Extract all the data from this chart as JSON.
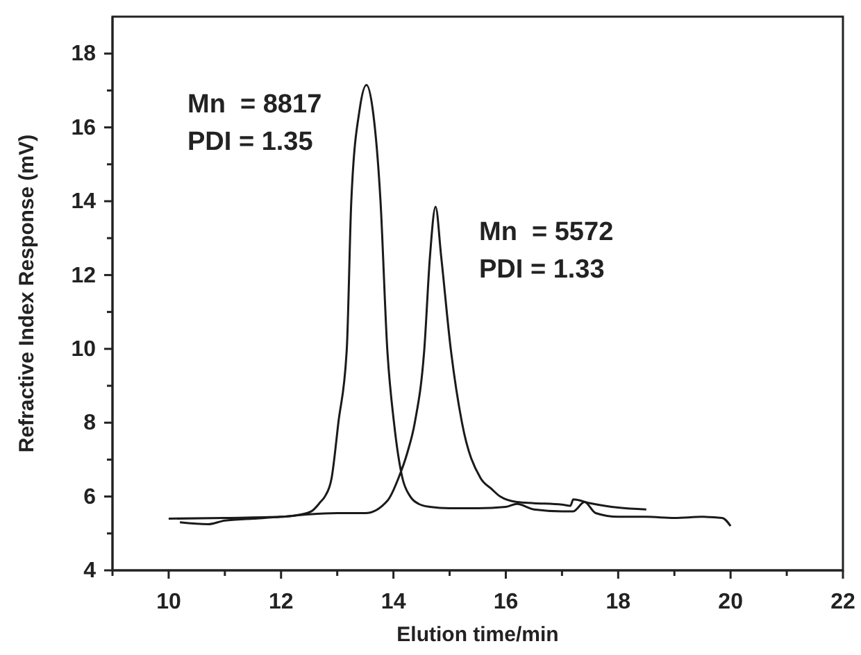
{
  "chart_data": {
    "type": "line",
    "xlabel": "Elution time/min",
    "ylabel": "Refractive Index Response (mV)",
    "xlim": [
      9,
      22
    ],
    "ylim": [
      4,
      19
    ],
    "xticks": [
      {
        "value": 9,
        "label": null
      },
      10,
      {
        "value": 11,
        "label": null
      },
      12,
      {
        "value": 13,
        "label": null
      },
      14,
      {
        "value": 15,
        "label": null
      },
      16,
      {
        "value": 17,
        "label": null
      },
      18,
      {
        "value": 19,
        "label": null
      },
      20,
      {
        "value": 21,
        "label": null
      },
      22
    ],
    "yticks": [
      4,
      {
        "value": 5,
        "label": null
      },
      6,
      {
        "value": 7,
        "label": null
      },
      8,
      {
        "value": 9,
        "label": null
      },
      10,
      {
        "value": 11,
        "label": null
      },
      12,
      {
        "value": 13,
        "label": null
      },
      14,
      {
        "value": 15,
        "label": null
      },
      16,
      {
        "value": 17,
        "label": null
      },
      18
    ],
    "grid": false,
    "marker": "none",
    "line_style": "solid",
    "series": [
      {
        "color": "#1a1a1a",
        "x": [
          10,
          11,
          12,
          12.3,
          12.54,
          12.7,
          12.78,
          12.9,
          13.02,
          13.17,
          13.25,
          13.4,
          13.52,
          13.63,
          13.77,
          13.89,
          14.01,
          14.16,
          14.3,
          14.45,
          14.65,
          15,
          15.5,
          16,
          16.2,
          16.5,
          17,
          17.2,
          17.4,
          17.6,
          18,
          18.5,
          19,
          19.5,
          19.85,
          20
        ],
        "values": [
          5.4,
          5.42,
          5.45,
          5.5,
          5.6,
          5.85,
          6,
          6.5,
          8,
          10,
          14,
          16.5,
          17.15,
          16.5,
          14,
          10,
          8,
          6.5,
          6,
          5.8,
          5.72,
          5.68,
          5.68,
          5.72,
          5.8,
          5.65,
          5.6,
          5.6,
          5.85,
          5.55,
          5.45,
          5.45,
          5.42,
          5.45,
          5.42,
          5.2
        ]
      },
      {
        "color": "#1a1a1a",
        "x": [
          10.2,
          10.7,
          11,
          11.5,
          12,
          12.5,
          13,
          13.5,
          13.9,
          14.09,
          14.25,
          14.38,
          14.55,
          14.65,
          14.75,
          14.85,
          15.02,
          15.22,
          15.55,
          15.75,
          15.9,
          16.2,
          16.5,
          17,
          17.15,
          17.2,
          17.5,
          18,
          18.5
        ],
        "values": [
          5.3,
          5.25,
          5.35,
          5.4,
          5.45,
          5.52,
          5.55,
          5.55,
          5.9,
          6.5,
          7.2,
          8,
          10,
          12.5,
          13.85,
          12.5,
          10,
          8,
          6.5,
          6.2,
          6,
          5.85,
          5.82,
          5.78,
          5.75,
          5.92,
          5.82,
          5.7,
          5.65
        ]
      }
    ],
    "annotations": [
      "Mn  = 8817\nPDI = 1.35",
      "Mn  = 5572\nPDI = 1.33"
    ]
  }
}
